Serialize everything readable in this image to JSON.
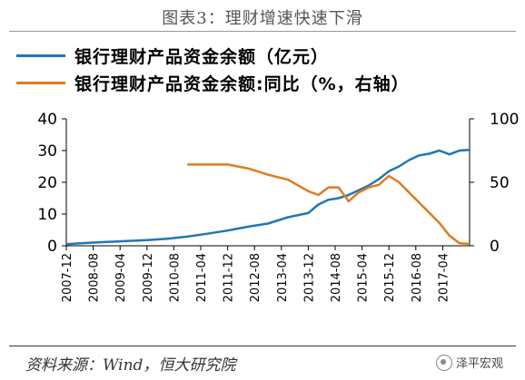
{
  "figure": {
    "title": "图表3：理财增速快速下滑",
    "source": "资料来源：Wind，恒大研究院",
    "watermark": "泽平宏观"
  },
  "colors": {
    "series1": "#1f77b4",
    "series2": "#e07b1f",
    "axis": "#000000"
  },
  "chart_data": {
    "type": "line",
    "legend_position": "top-left",
    "grid": false,
    "x_start": "2007-12",
    "x_end": "2017-12",
    "x_ticks": [
      "2007-12",
      "2008-08",
      "2009-04",
      "2009-12",
      "2010-08",
      "2011-04",
      "2011-12",
      "2012-08",
      "2013-04",
      "2013-12",
      "2014-08",
      "2015-04",
      "2015-12",
      "2016-08",
      "2017-04"
    ],
    "y_left": {
      "lim": [
        0,
        40
      ],
      "ticks": [
        0,
        10,
        20,
        30,
        40
      ]
    },
    "y_right": {
      "lim": [
        0,
        100
      ],
      "ticks": [
        0,
        50,
        100
      ]
    },
    "series": [
      {
        "name": "银行理财产品资金余额（亿元）",
        "axis": "left",
        "points": [
          [
            "2007-12",
            0.5
          ],
          [
            "2008-06",
            0.9
          ],
          [
            "2008-12",
            1.2
          ],
          [
            "2009-06",
            1.5
          ],
          [
            "2009-12",
            1.8
          ],
          [
            "2010-06",
            2.2
          ],
          [
            "2010-12",
            2.9
          ],
          [
            "2011-06",
            3.8
          ],
          [
            "2011-12",
            4.8
          ],
          [
            "2012-06",
            6.0
          ],
          [
            "2012-12",
            7.0
          ],
          [
            "2013-06",
            9.0
          ],
          [
            "2013-12",
            10.3
          ],
          [
            "2014-03",
            13.0
          ],
          [
            "2014-06",
            14.5
          ],
          [
            "2014-09",
            15.0
          ],
          [
            "2014-12",
            16.0
          ],
          [
            "2015-03",
            17.5
          ],
          [
            "2015-06",
            19.0
          ],
          [
            "2015-09",
            21.0
          ],
          [
            "2015-12",
            23.5
          ],
          [
            "2016-03",
            25.0
          ],
          [
            "2016-06",
            27.0
          ],
          [
            "2016-09",
            28.5
          ],
          [
            "2016-12",
            29.0
          ],
          [
            "2017-03",
            30.0
          ],
          [
            "2017-06",
            28.8
          ],
          [
            "2017-09",
            30.0
          ],
          [
            "2017-12",
            30.2
          ]
        ]
      },
      {
        "name": "银行理财产品资金余额:同比（%，右轴）",
        "axis": "right",
        "points": [
          [
            "2010-12",
            64
          ],
          [
            "2011-06",
            64
          ],
          [
            "2011-12",
            64
          ],
          [
            "2012-06",
            61
          ],
          [
            "2012-12",
            56
          ],
          [
            "2013-06",
            52
          ],
          [
            "2013-12",
            43
          ],
          [
            "2014-03",
            40
          ],
          [
            "2014-06",
            46
          ],
          [
            "2014-09",
            46
          ],
          [
            "2014-12",
            35
          ],
          [
            "2015-03",
            42
          ],
          [
            "2015-06",
            46
          ],
          [
            "2015-09",
            48
          ],
          [
            "2015-12",
            55
          ],
          [
            "2016-03",
            50
          ],
          [
            "2016-06",
            42
          ],
          [
            "2016-09",
            34
          ],
          [
            "2016-12",
            26
          ],
          [
            "2017-03",
            18
          ],
          [
            "2017-06",
            8
          ],
          [
            "2017-09",
            2
          ],
          [
            "2017-12",
            1.5
          ]
        ]
      }
    ]
  }
}
